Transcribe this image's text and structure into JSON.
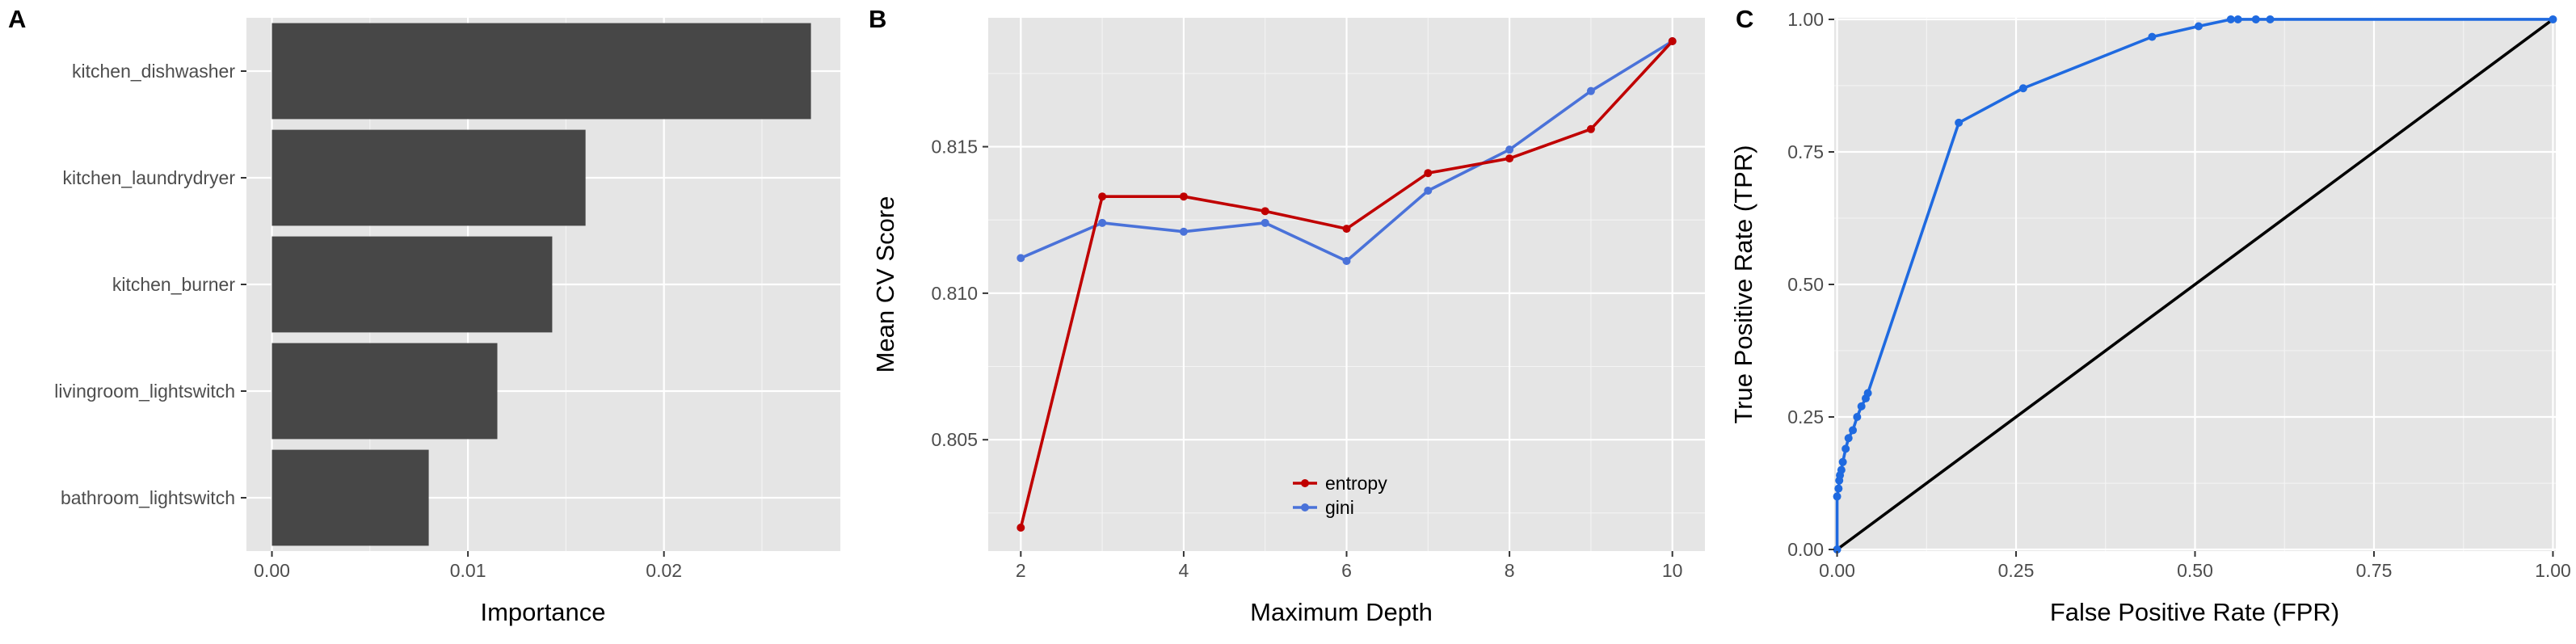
{
  "chart_data": [
    {
      "panel": "A",
      "type": "bar",
      "orientation": "horizontal",
      "categories": [
        "kitchen_dishwasher",
        "kitchen_laundrydryer",
        "kitchen_burner",
        "livingroom_lightswitch",
        "bathroom_lightswitch"
      ],
      "values": [
        0.0275,
        0.016,
        0.0143,
        0.0115,
        0.008
      ],
      "bar_color": "#474747",
      "xlabel": "Importance",
      "ylabel": "",
      "xlim": [
        -0.0013,
        0.029
      ],
      "xticks": [
        0,
        0.01,
        0.02
      ],
      "xtick_labels": [
        "0.00",
        "0.01",
        "0.02"
      ],
      "grid": true
    },
    {
      "panel": "B",
      "type": "line",
      "x": [
        2,
        3,
        4,
        5,
        6,
        7,
        8,
        9,
        10
      ],
      "series": [
        {
          "name": "entropy",
          "color": "#c00000",
          "values": [
            0.802,
            0.8133,
            0.8133,
            0.8128,
            0.8122,
            0.8141,
            0.8146,
            0.8156,
            0.8186
          ]
        },
        {
          "name": "gini",
          "color": "#4a72d9",
          "values": [
            0.8112,
            0.8124,
            0.8121,
            0.8124,
            0.8111,
            0.8135,
            0.8149,
            0.8169,
            0.8186
          ]
        }
      ],
      "xlabel": "Maximum Depth",
      "ylabel": "Mean CV Score",
      "xlim": [
        1.6,
        10.4
      ],
      "ylim": [
        0.8012,
        0.8194
      ],
      "xticks": [
        2,
        4,
        6,
        8,
        10
      ],
      "xtick_labels": [
        "2",
        "4",
        "6",
        "8",
        "10"
      ],
      "yticks": [
        0.805,
        0.81,
        0.815
      ],
      "ytick_labels": [
        "0.805",
        "0.810",
        "0.815"
      ],
      "legend_position": "bottom-center",
      "grid": true
    },
    {
      "panel": "C",
      "type": "line",
      "series": [
        {
          "name": "",
          "color": "#1f6ae0",
          "x": [
            0,
            0,
            0.002,
            0.003,
            0.004,
            0.006,
            0.008,
            0.012,
            0.016,
            0.022,
            0.028,
            0.034,
            0.04,
            0.043,
            0.17,
            0.26,
            0.44,
            0.505,
            0.55,
            0.56,
            0.585,
            0.605,
            1.0
          ],
          "y": [
            0,
            0.1,
            0.115,
            0.13,
            0.14,
            0.15,
            0.165,
            0.19,
            0.21,
            0.225,
            0.25,
            0.27,
            0.285,
            0.295,
            0.805,
            0.87,
            0.967,
            0.987,
            1.0,
            1.0,
            1.0,
            1.0,
            1.0
          ]
        },
        {
          "name": "",
          "color": "#000000",
          "x": [
            0,
            1
          ],
          "y": [
            0,
            1
          ]
        }
      ],
      "xlabel": "False Positive Rate (FPR)",
      "ylabel": "True Positive Rate (TPR)",
      "xlim": [
        -0.004,
        1.004
      ],
      "ylim": [
        -0.003,
        1.003
      ],
      "xticks": [
        0,
        0.25,
        0.5,
        0.75,
        1.0
      ],
      "xtick_labels": [
        "0.00",
        "0.25",
        "0.50",
        "0.75",
        "1.00"
      ],
      "yticks": [
        0,
        0.25,
        0.5,
        0.75,
        1.0
      ],
      "ytick_labels": [
        "0.00",
        "0.25",
        "0.50",
        "0.75",
        "1.00"
      ],
      "grid": true
    }
  ]
}
